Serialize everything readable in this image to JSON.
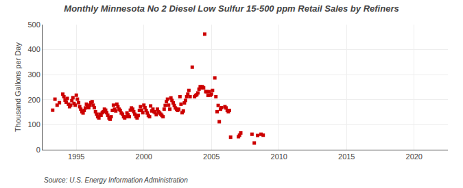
{
  "chart_data": {
    "type": "scatter",
    "title": "Monthly Minnesota No 2 Diesel Low Sulfur 15-500 ppm Retail Sales by Refiners",
    "ylabel": "Thousand Gallons per Day",
    "annotation": "Source: U.S. Energy Information Administration",
    "color": "#cc0000",
    "marker": "square",
    "grid": true,
    "xlim": [
      1992.5,
      2022.5
    ],
    "ylim": [
      0,
      500
    ],
    "xticks": [
      1995,
      2000,
      2005,
      2010,
      2015,
      2020
    ],
    "yticks": [
      0,
      100,
      200,
      300,
      400,
      500
    ],
    "x": [
      1993.25,
      1993.42,
      1993.58,
      1993.75,
      1994.0,
      1994.08,
      1994.17,
      1994.25,
      1994.33,
      1994.42,
      1994.5,
      1994.58,
      1994.67,
      1994.75,
      1994.83,
      1994.92,
      1995.0,
      1995.08,
      1995.17,
      1995.25,
      1995.33,
      1995.42,
      1995.5,
      1995.58,
      1995.67,
      1995.75,
      1995.83,
      1995.92,
      1996.0,
      1996.08,
      1996.17,
      1996.25,
      1996.33,
      1996.42,
      1996.5,
      1996.58,
      1996.67,
      1996.75,
      1996.83,
      1996.92,
      1997.0,
      1997.08,
      1997.17,
      1997.25,
      1997.33,
      1997.42,
      1997.5,
      1997.58,
      1997.67,
      1997.75,
      1997.83,
      1997.92,
      1998.0,
      1998.08,
      1998.17,
      1998.25,
      1998.33,
      1998.42,
      1998.5,
      1998.58,
      1998.67,
      1998.75,
      1998.83,
      1998.92,
      1999.0,
      1999.08,
      1999.17,
      1999.25,
      1999.33,
      1999.42,
      1999.5,
      1999.58,
      1999.67,
      1999.75,
      1999.83,
      1999.92,
      2000.0,
      2000.08,
      2000.17,
      2000.25,
      2000.33,
      2000.42,
      2000.5,
      2000.58,
      2000.67,
      2000.75,
      2000.83,
      2000.92,
      2001.0,
      2001.08,
      2001.17,
      2001.25,
      2001.33,
      2001.42,
      2001.5,
      2001.58,
      2001.67,
      2001.75,
      2001.83,
      2001.92,
      2002.0,
      2002.08,
      2002.17,
      2002.25,
      2002.33,
      2002.42,
      2002.5,
      2002.58,
      2002.67,
      2002.75,
      2002.83,
      2002.92,
      2003.0,
      2003.08,
      2003.17,
      2003.25,
      2003.33,
      2003.42,
      2003.58,
      2003.75,
      2003.83,
      2003.92,
      2004.0,
      2004.08,
      2004.17,
      2004.25,
      2004.33,
      2004.42,
      2004.5,
      2004.58,
      2004.67,
      2004.75,
      2004.83,
      2004.92,
      2005.0,
      2005.08,
      2005.25,
      2005.33,
      2005.42,
      2005.5,
      2005.58,
      2005.67,
      2005.75,
      2006.0,
      2006.08,
      2006.17,
      2006.25,
      2006.33,
      2006.42,
      2007.0,
      2007.08,
      2007.17,
      2008.0,
      2008.17,
      2008.42,
      2008.67,
      2008.83
    ],
    "values": [
      158,
      202,
      178,
      188,
      222,
      212,
      198,
      190,
      205,
      182,
      172,
      178,
      196,
      208,
      185,
      178,
      218,
      202,
      188,
      172,
      162,
      152,
      147,
      157,
      167,
      182,
      175,
      168,
      178,
      188,
      192,
      178,
      168,
      152,
      142,
      132,
      127,
      142,
      138,
      148,
      152,
      162,
      158,
      148,
      138,
      127,
      122,
      132,
      157,
      178,
      162,
      155,
      182,
      172,
      162,
      157,
      147,
      142,
      132,
      127,
      132,
      147,
      140,
      132,
      158,
      167,
      162,
      152,
      142,
      132,
      127,
      137,
      157,
      172,
      158,
      148,
      178,
      168,
      157,
      147,
      137,
      132,
      175,
      155,
      162,
      152,
      148,
      140,
      162,
      152,
      147,
      142,
      137,
      132,
      162,
      177,
      192,
      202,
      178,
      162,
      207,
      197,
      187,
      177,
      167,
      162,
      157,
      162,
      212,
      182,
      148,
      155,
      187,
      197,
      212,
      222,
      237,
      212,
      330,
      212,
      217,
      220,
      227,
      242,
      252,
      247,
      252,
      247,
      462,
      232,
      232,
      217,
      232,
      218,
      222,
      237,
      287,
      212,
      152,
      177,
      112,
      162,
      168,
      172,
      167,
      157,
      152,
      157,
      50,
      52,
      58,
      67,
      62,
      27,
      57,
      62,
      58
    ]
  }
}
